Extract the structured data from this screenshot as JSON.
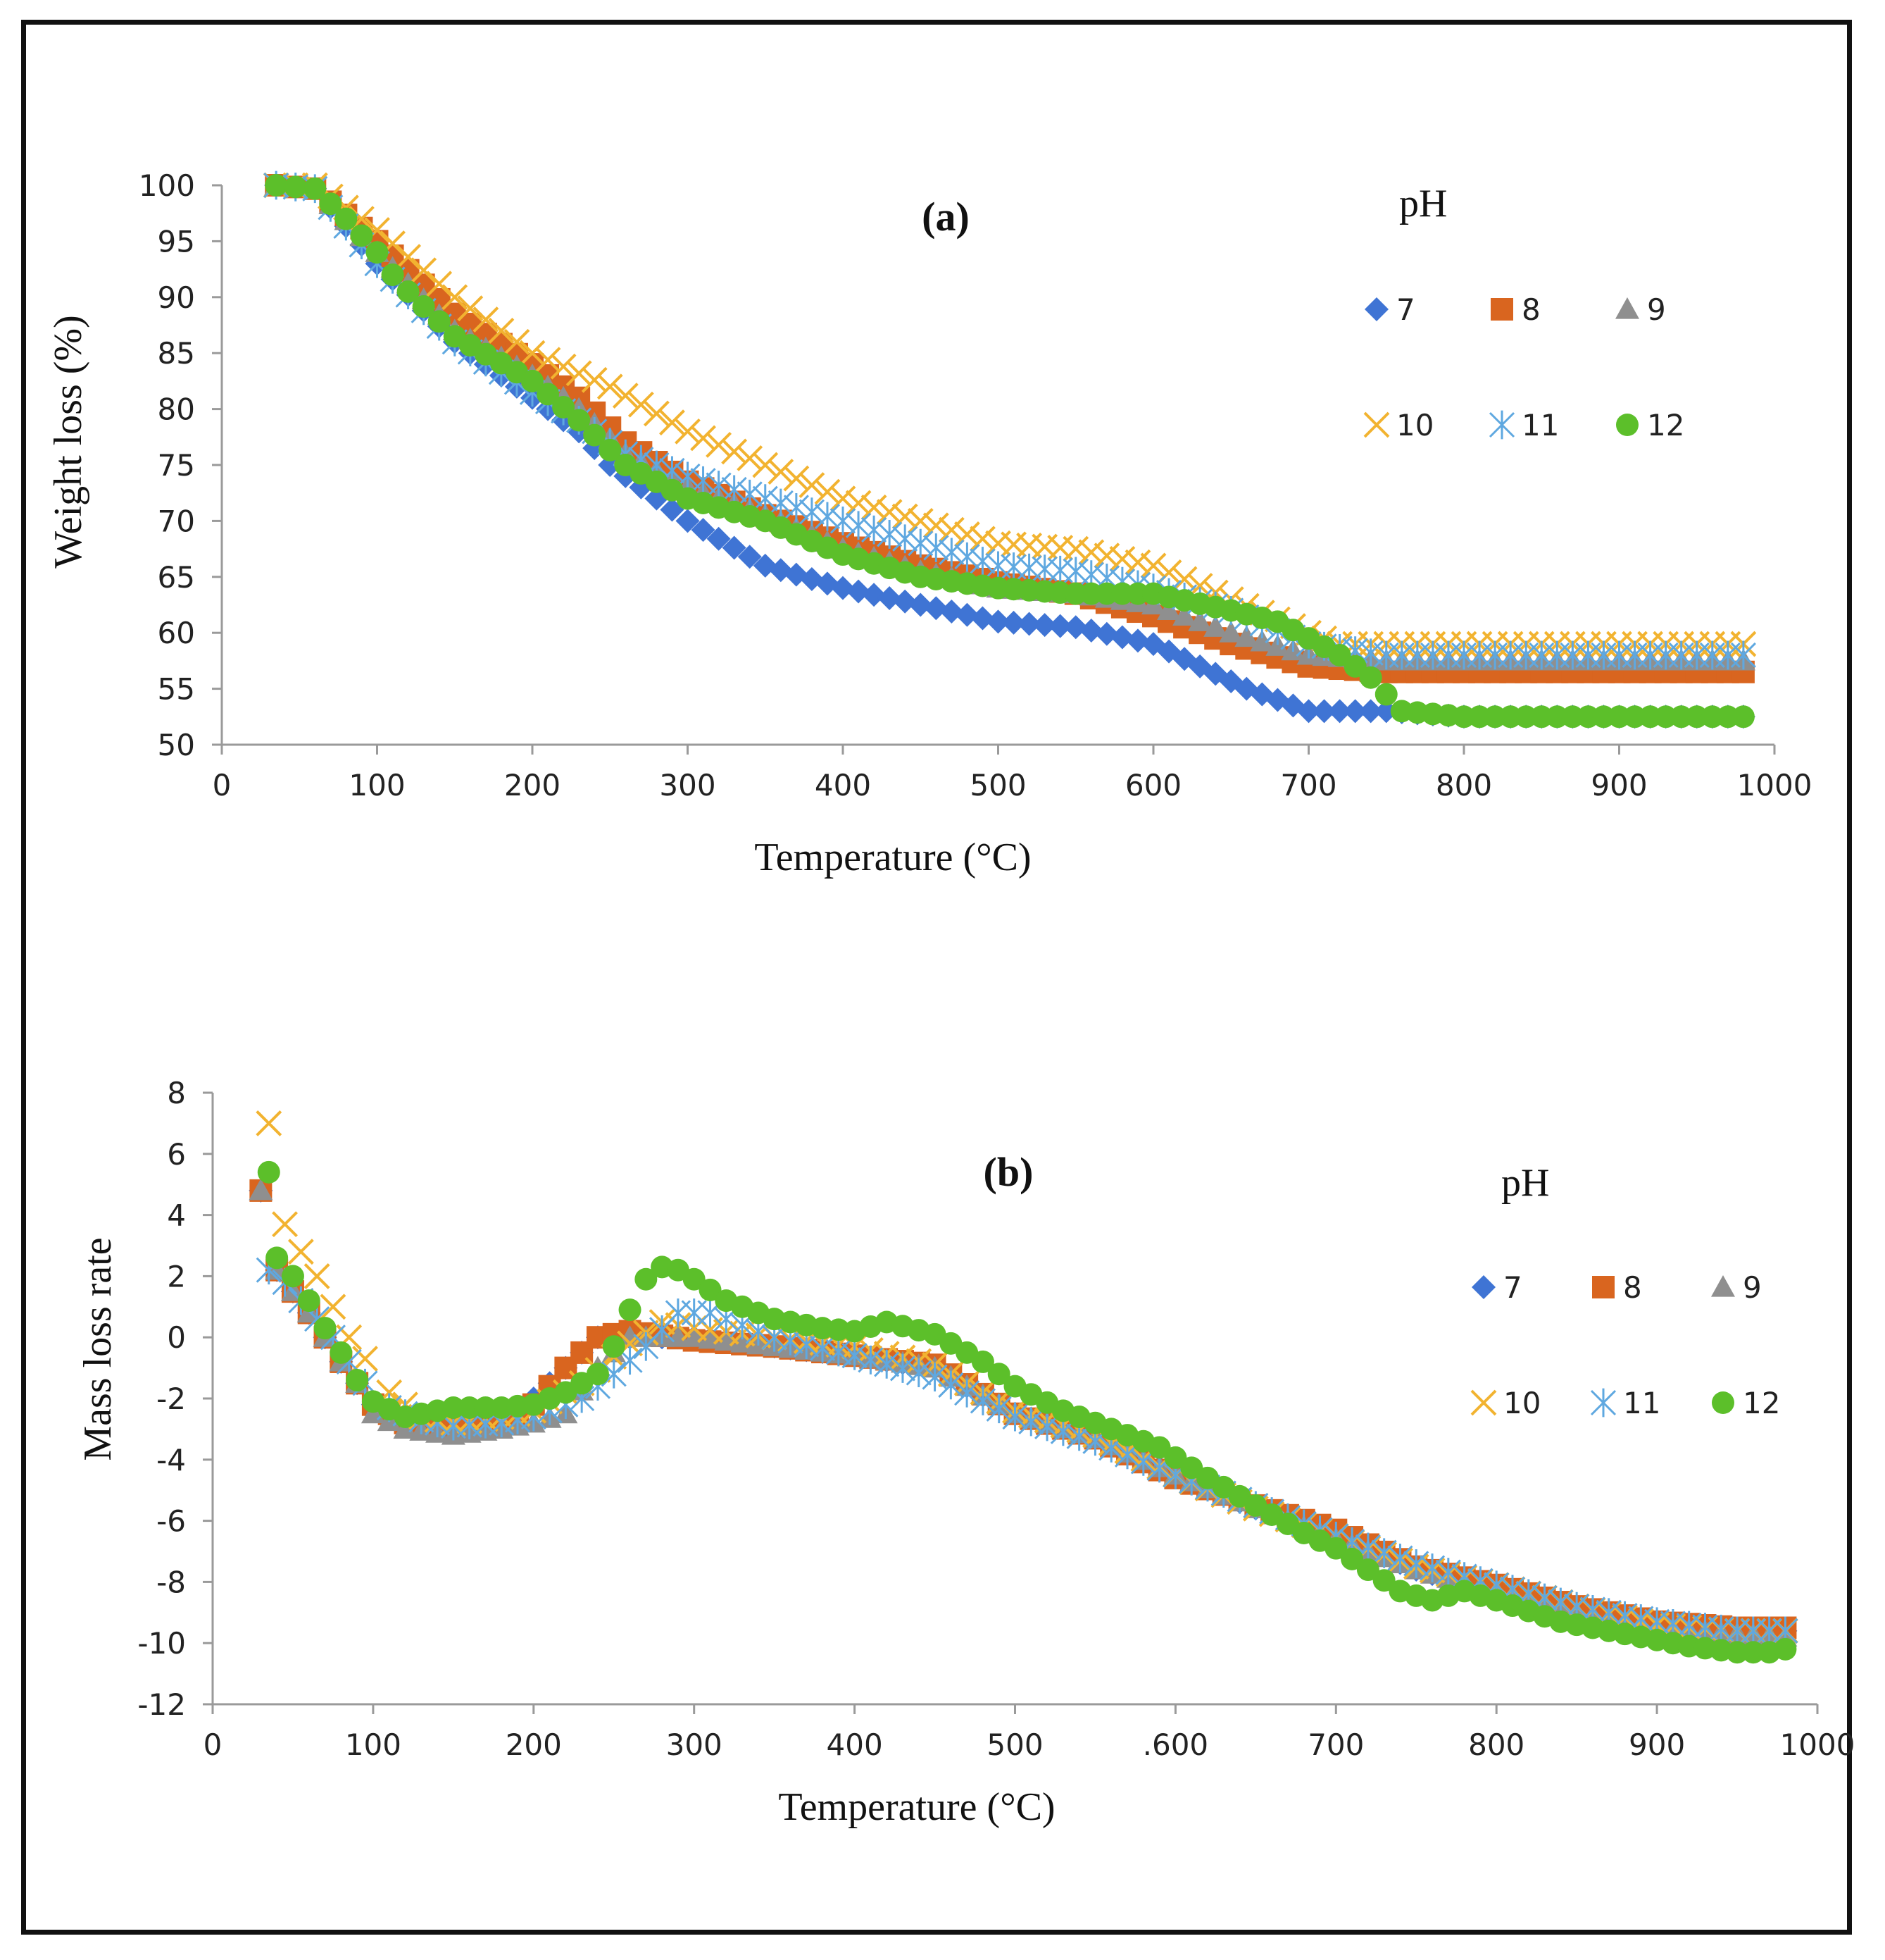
{
  "colors": {
    "pH7": "#3f74d4",
    "pH8": "#d9651f",
    "pH9": "#8f8f8f",
    "pH10": "#f2b330",
    "pH11": "#5fa8e0",
    "pH12": "#5cbf2a"
  },
  "legend": {
    "title": "pH",
    "items": [
      {
        "label": "7",
        "marker": "diamond-icon",
        "color": "#3f74d4"
      },
      {
        "label": "8",
        "marker": "square-icon",
        "color": "#d9651f"
      },
      {
        "label": "9",
        "marker": "triangle-icon",
        "color": "#8f8f8f"
      },
      {
        "label": "10",
        "marker": "x-cross-icon",
        "color": "#f2b330"
      },
      {
        "label": "11",
        "marker": "asterisk-icon",
        "color": "#5fa8e0"
      },
      {
        "label": "12",
        "marker": "circle-icon",
        "color": "#5cbf2a"
      }
    ]
  },
  "chart_data": [
    {
      "type": "scatter",
      "panel_label": "(a)",
      "title": "",
      "xlabel": "Temperature (°C)",
      "ylabel": "Weight loss (%)",
      "xlim": [
        0,
        1000
      ],
      "ylim": [
        50,
        100
      ],
      "xticks": [
        "0",
        "100",
        "200",
        "300",
        "400",
        "500",
        "600",
        "700",
        "800",
        "900",
        "1000"
      ],
      "yticks": [
        "50",
        "55",
        "60",
        "65",
        "70",
        "75",
        "80",
        "85",
        "90",
        "95",
        "100"
      ],
      "series": [
        {
          "name": "7",
          "marker": "diamond",
          "color": "#3f74d4",
          "x": [
            35,
            60,
            100,
            150,
            200,
            230,
            250,
            280,
            300,
            350,
            400,
            450,
            500,
            550,
            600,
            630,
            660,
            700,
            750,
            800,
            850,
            900,
            980
          ],
          "y": [
            100,
            99.7,
            93,
            86,
            81,
            78,
            75,
            72,
            70,
            66,
            64,
            62.5,
            61,
            60.5,
            59,
            57,
            55,
            53,
            53,
            52.5,
            52.5,
            52.5,
            52.5
          ]
        },
        {
          "name": "8",
          "marker": "square",
          "color": "#d9651f",
          "x": [
            35,
            60,
            100,
            150,
            200,
            230,
            260,
            300,
            350,
            400,
            450,
            500,
            550,
            600,
            650,
            700,
            750,
            800,
            850,
            900,
            980
          ],
          "y": [
            100,
            99.7,
            95,
            88.5,
            84,
            81,
            77,
            73.5,
            70.5,
            68,
            66,
            64.5,
            63.5,
            61.5,
            59,
            57,
            56.5,
            56.5,
            56.5,
            56.5,
            56.5
          ]
        },
        {
          "name": "9",
          "marker": "triangle",
          "color": "#8f8f8f",
          "x": [
            35,
            60,
            100,
            150,
            200,
            230,
            260,
            300,
            350,
            400,
            450,
            500,
            550,
            600,
            650,
            700,
            750,
            800,
            850,
            900,
            980
          ],
          "y": [
            100,
            99.7,
            94,
            87,
            83,
            80,
            76,
            73,
            70.5,
            67.5,
            65.5,
            64,
            63.5,
            62.5,
            60,
            58,
            57.5,
            57.5,
            57.5,
            57.5,
            57.5
          ]
        },
        {
          "name": "10",
          "marker": "x",
          "color": "#f2b330",
          "x": [
            35,
            60,
            100,
            150,
            200,
            250,
            300,
            350,
            400,
            450,
            500,
            550,
            600,
            650,
            700,
            720,
            800,
            900,
            980
          ],
          "y": [
            100,
            100,
            96,
            90,
            85,
            82,
            78,
            75,
            72,
            70,
            68,
            67.5,
            66,
            63,
            60,
            59,
            59,
            59,
            59
          ]
        },
        {
          "name": "11",
          "marker": "asterisk",
          "color": "#5fa8e0",
          "x": [
            35,
            60,
            100,
            150,
            200,
            230,
            260,
            300,
            350,
            400,
            450,
            500,
            550,
            600,
            650,
            700,
            750,
            800,
            900,
            980
          ],
          "y": [
            100,
            99.7,
            93,
            86,
            81.5,
            79,
            76,
            74,
            72,
            70,
            68,
            66,
            65.5,
            64,
            62,
            59,
            58,
            58,
            58,
            58
          ]
        },
        {
          "name": "12",
          "marker": "circle",
          "color": "#5cbf2a",
          "x": [
            35,
            60,
            80,
            100,
            110,
            120,
            150,
            200,
            230,
            260,
            280,
            300,
            350,
            400,
            450,
            500,
            550,
            600,
            650,
            680,
            700,
            720,
            740,
            760,
            800,
            850,
            900,
            980
          ],
          "y": [
            100,
            99.7,
            97,
            94,
            92,
            90.5,
            86.5,
            82.5,
            79,
            75,
            73.5,
            72,
            70,
            67,
            65,
            64,
            63.5,
            63.5,
            62,
            61,
            59.5,
            58,
            56,
            53,
            52.5,
            52.5,
            52.5,
            52.5
          ]
        }
      ]
    },
    {
      "type": "scatter",
      "panel_label": "(b)",
      "title": "",
      "xlabel": "Temperature (°C)",
      "ylabel": "Mass loss rate",
      "xlim": [
        0,
        1000
      ],
      "ylim": [
        -12,
        8
      ],
      "xticks": [
        "0",
        "100",
        "200",
        "300",
        "400",
        "500",
        ".600",
        "700",
        "800",
        "900",
        "1000"
      ],
      "yticks": [
        "-12",
        "-10",
        "-8",
        "-6",
        "-4",
        "-2",
        "0",
        "2",
        "4",
        "6",
        "8"
      ],
      "series": [
        {
          "name": "7",
          "marker": "diamond",
          "color": "#3f74d4",
          "x": [
            30,
            40,
            50,
            60,
            70,
            80,
            90,
            100,
            120,
            150,
            180,
            200,
            220,
            240,
            260,
            300,
            350,
            400,
            450,
            500,
            550,
            600,
            650,
            700,
            750,
            800,
            850,
            900,
            950,
            980
          ],
          "y": [
            4.8,
            2.2,
            1.5,
            0.8,
            0,
            -0.8,
            -1.5,
            -2.2,
            -2.8,
            -3,
            -2.8,
            -2,
            -1,
            0,
            0,
            0,
            -0.3,
            -0.6,
            -1,
            -2.5,
            -3.3,
            -4.5,
            -5.6,
            -6.5,
            -7.6,
            -8.3,
            -9,
            -9.5,
            -9.6,
            -9.6
          ]
        },
        {
          "name": "8",
          "marker": "square",
          "color": "#d9651f",
          "x": [
            30,
            40,
            50,
            60,
            70,
            80,
            90,
            100,
            120,
            150,
            180,
            200,
            220,
            240,
            260,
            300,
            350,
            400,
            450,
            500,
            550,
            600,
            650,
            700,
            750,
            800,
            850,
            900,
            950,
            980
          ],
          "y": [
            4.8,
            2.2,
            1.5,
            0.8,
            0,
            -0.8,
            -1.5,
            -2.2,
            -2.8,
            -3,
            -2.8,
            -2.2,
            -1,
            0,
            0.2,
            -0.1,
            -0.3,
            -0.6,
            -0.9,
            -2.5,
            -3.3,
            -4.6,
            -5.5,
            -6.3,
            -7.5,
            -8.1,
            -8.8,
            -9.3,
            -9.5,
            -9.5
          ]
        },
        {
          "name": "9",
          "marker": "triangle",
          "color": "#8f8f8f",
          "x": [
            30,
            40,
            50,
            60,
            70,
            80,
            90,
            100,
            120,
            150,
            180,
            200,
            220,
            240,
            260,
            300,
            350,
            400,
            450,
            500,
            550,
            600,
            650,
            700,
            750,
            800,
            850,
            900,
            950,
            980
          ],
          "y": [
            4.8,
            2.2,
            1.5,
            0.8,
            0,
            -0.8,
            -1.5,
            -2.5,
            -3,
            -3.2,
            -3,
            -2.8,
            -2.5,
            -1,
            0,
            0,
            -0.3,
            -0.6,
            -1,
            -2.5,
            -3.3,
            -4.5,
            -5.6,
            -6.6,
            -7.6,
            -8.3,
            -9,
            -9.5,
            -9.7,
            -9.8
          ]
        },
        {
          "name": "10",
          "marker": "x",
          "color": "#f2b330",
          "x": [
            35,
            45,
            55,
            65,
            75,
            85,
            95,
            110,
            130,
            150,
            180,
            200,
            230,
            260,
            280,
            300,
            350,
            400,
            450,
            500,
            550,
            600,
            650,
            700,
            750,
            800,
            850,
            900,
            950,
            980
          ],
          "y": [
            7,
            3.7,
            2.8,
            2,
            1,
            0,
            -0.7,
            -1.8,
            -2.6,
            -2.8,
            -2.6,
            -2.4,
            -1.5,
            -0.2,
            0.5,
            0.3,
            0,
            -0.3,
            -0.9,
            -2.4,
            -3.2,
            -4.5,
            -5.6,
            -6.5,
            -7.5,
            -8.1,
            -8.8,
            -9.4,
            -9.6,
            -9.6
          ]
        },
        {
          "name": "11",
          "marker": "asterisk",
          "color": "#5fa8e0",
          "x": [
            35,
            45,
            55,
            65,
            75,
            85,
            95,
            110,
            130,
            150,
            180,
            200,
            230,
            250,
            270,
            290,
            310,
            350,
            400,
            450,
            500,
            550,
            600,
            650,
            700,
            750,
            800,
            850,
            900,
            950,
            980
          ],
          "y": [
            2.2,
            1.8,
            1.2,
            0.6,
            0,
            -0.8,
            -1.5,
            -2.3,
            -2.7,
            -2.9,
            -2.8,
            -2.6,
            -2,
            -1.2,
            -0.3,
            0.8,
            0.8,
            0,
            -0.6,
            -1.3,
            -2.6,
            -3.4,
            -4.5,
            -5.5,
            -6.5,
            -7.4,
            -8.1,
            -8.8,
            -9.3,
            -9.6,
            -9.6
          ]
        },
        {
          "name": "12",
          "marker": "circle",
          "color": "#5cbf2a",
          "x": [
            35,
            40,
            50,
            60,
            70,
            80,
            90,
            100,
            120,
            150,
            180,
            200,
            220,
            240,
            250,
            260,
            270,
            280,
            290,
            300,
            320,
            350,
            380,
            400,
            420,
            450,
            480,
            500,
            530,
            560,
            590,
            620,
            650,
            680,
            700,
            720,
            740,
            760,
            780,
            800,
            840,
            880,
            920,
            950,
            970,
            980
          ],
          "y": [
            5.4,
            2.6,
            2,
            1.2,
            0.3,
            -0.5,
            -1.4,
            -2.1,
            -2.6,
            -2.3,
            -2.3,
            -2.2,
            -1.8,
            -1.2,
            -0.3,
            0.9,
            1.9,
            2.3,
            2.2,
            1.9,
            1.2,
            0.6,
            0.3,
            0.2,
            0.5,
            0.1,
            -0.8,
            -1.6,
            -2.4,
            -3,
            -3.6,
            -4.6,
            -5.5,
            -6.4,
            -6.9,
            -7.6,
            -8.3,
            -8.6,
            -8.3,
            -8.6,
            -9.3,
            -9.7,
            -10.1,
            -10.3,
            -10.3,
            -10.2
          ]
        }
      ]
    }
  ]
}
